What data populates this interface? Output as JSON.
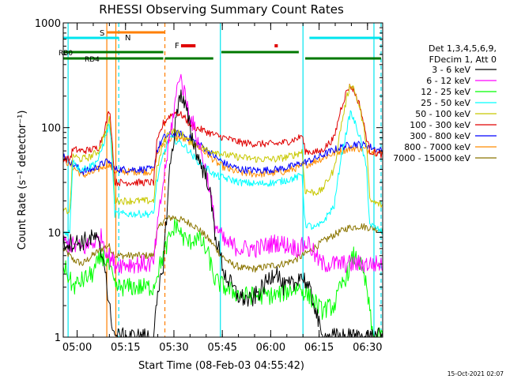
{
  "chart_data": {
    "type": "line",
    "title": "RHESSI Observing Summary Count Rates",
    "xlabel": "Start Time (08-Feb-03 04:55:42)",
    "ylabel": "Count Rate (s⁻¹ detector⁻¹)",
    "footer_date": "15-Oct-2021 02:07",
    "x_ticks": [
      "05:00",
      "05:15",
      "05:30",
      "05:45",
      "06:00",
      "06:15",
      "06:30"
    ],
    "x_tick_minutes": [
      4.3,
      19.3,
      34.3,
      49.3,
      64.3,
      79.3,
      94.3
    ],
    "xlim_minutes": [
      0,
      99
    ],
    "y_ticks": [
      "1",
      "10",
      "100",
      "1000"
    ],
    "y_tick_values": [
      1,
      10,
      100,
      1000
    ],
    "ylim": [
      1,
      1000
    ],
    "yscale": "log",
    "legend_header": [
      "Det 1,3,4,5,6,9,",
      "FDecim 1, Att 0"
    ],
    "series": [
      {
        "name": "3 - 6 keV",
        "color": "#000000",
        "points": [
          [
            0,
            8
          ],
          [
            5,
            8
          ],
          [
            10,
            9
          ],
          [
            13,
            5
          ],
          [
            14,
            2
          ],
          [
            15,
            1.5
          ],
          [
            16,
            1
          ],
          [
            28,
            1
          ],
          [
            29,
            2
          ],
          [
            31,
            5
          ],
          [
            33,
            40
          ],
          [
            35,
            120
          ],
          [
            36,
            220
          ],
          [
            38,
            150
          ],
          [
            40,
            80
          ],
          [
            42,
            50
          ],
          [
            45,
            30
          ],
          [
            47,
            10
          ],
          [
            50,
            4
          ],
          [
            54,
            2.5
          ],
          [
            58,
            2.2
          ],
          [
            62,
            3
          ],
          [
            66,
            4.5
          ],
          [
            68,
            3
          ],
          [
            72,
            3.2
          ],
          [
            73,
            4
          ],
          [
            75,
            3.5
          ],
          [
            78,
            2
          ],
          [
            80,
            1
          ],
          [
            84,
            1
          ],
          [
            86,
            1
          ],
          [
            99,
            1
          ]
        ]
      },
      {
        "name": "6 - 12 keV",
        "color": "#ff00ff",
        "points": [
          [
            0,
            8
          ],
          [
            6,
            7
          ],
          [
            12,
            9
          ],
          [
            14,
            6
          ],
          [
            16,
            5
          ],
          [
            28,
            5
          ],
          [
            29,
            10
          ],
          [
            31,
            30
          ],
          [
            33,
            80
          ],
          [
            35,
            200
          ],
          [
            36,
            330
          ],
          [
            37,
            250
          ],
          [
            39,
            140
          ],
          [
            41,
            90
          ],
          [
            43,
            55
          ],
          [
            45,
            30
          ],
          [
            47,
            12
          ],
          [
            50,
            8
          ],
          [
            55,
            7
          ],
          [
            60,
            7
          ],
          [
            66,
            8
          ],
          [
            70,
            7.5
          ],
          [
            73,
            7
          ],
          [
            76,
            8
          ],
          [
            78,
            6
          ],
          [
            80,
            5
          ],
          [
            99,
            5
          ]
        ]
      },
      {
        "name": "12 - 25 keV",
        "color": "#00ff00",
        "points": [
          [
            0,
            5
          ],
          [
            3,
            3
          ],
          [
            6,
            3.5
          ],
          [
            9,
            4
          ],
          [
            12,
            6
          ],
          [
            14,
            5
          ],
          [
            16,
            3
          ],
          [
            28,
            3
          ],
          [
            29,
            4
          ],
          [
            31,
            6
          ],
          [
            33,
            9
          ],
          [
            35,
            12
          ],
          [
            37,
            9
          ],
          [
            39,
            8
          ],
          [
            41,
            9
          ],
          [
            43,
            8
          ],
          [
            45,
            6
          ],
          [
            47,
            3.5
          ],
          [
            50,
            3
          ],
          [
            55,
            2.5
          ],
          [
            60,
            2.5
          ],
          [
            66,
            2.5
          ],
          [
            70,
            2.8
          ],
          [
            73,
            3
          ],
          [
            78,
            2.2
          ],
          [
            80,
            1.8
          ],
          [
            84,
            2
          ],
          [
            86,
            3
          ],
          [
            88,
            4
          ],
          [
            90,
            6
          ],
          [
            92,
            5
          ],
          [
            94,
            3
          ],
          [
            96,
            1
          ],
          [
            99,
            1
          ]
        ]
      },
      {
        "name": "25 - 50 keV",
        "color": "#00ffff",
        "points": [
          [
            0,
            10
          ],
          [
            2,
            10
          ],
          [
            3,
            50
          ],
          [
            5,
            40
          ],
          [
            8,
            42
          ],
          [
            11,
            50
          ],
          [
            13,
            80
          ],
          [
            14.3,
            110
          ],
          [
            15,
            60
          ],
          [
            16,
            15
          ],
          [
            28,
            15
          ],
          [
            29,
            30
          ],
          [
            31,
            55
          ],
          [
            33,
            80
          ],
          [
            35,
            75
          ],
          [
            37,
            70
          ],
          [
            39,
            60
          ],
          [
            41,
            50
          ],
          [
            43,
            45
          ],
          [
            45,
            40
          ],
          [
            47,
            35
          ],
          [
            50,
            33
          ],
          [
            55,
            30
          ],
          [
            60,
            29
          ],
          [
            66,
            30
          ],
          [
            70,
            32
          ],
          [
            73,
            34
          ],
          [
            74,
            36
          ],
          [
            75,
            12
          ],
          [
            78,
            11
          ],
          [
            80,
            12
          ],
          [
            84,
            18
          ],
          [
            86,
            50
          ],
          [
            88,
            100
          ],
          [
            89,
            140
          ],
          [
            90,
            120
          ],
          [
            92,
            80
          ],
          [
            94,
            40
          ],
          [
            95,
            12
          ],
          [
            99,
            10
          ]
        ]
      },
      {
        "name": "50 - 100 keV",
        "color": "#c8c800",
        "points": [
          [
            0,
            16
          ],
          [
            2,
            16
          ],
          [
            3,
            55
          ],
          [
            5,
            50
          ],
          [
            8,
            52
          ],
          [
            11,
            60
          ],
          [
            13,
            90
          ],
          [
            14.3,
            120
          ],
          [
            15,
            70
          ],
          [
            16,
            20
          ],
          [
            28,
            20
          ],
          [
            29,
            40
          ],
          [
            31,
            70
          ],
          [
            33,
            95
          ],
          [
            35,
            90
          ],
          [
            37,
            85
          ],
          [
            39,
            75
          ],
          [
            41,
            70
          ],
          [
            43,
            65
          ],
          [
            45,
            60
          ],
          [
            47,
            60
          ],
          [
            50,
            55
          ],
          [
            55,
            52
          ],
          [
            60,
            50
          ],
          [
            66,
            50
          ],
          [
            70,
            53
          ],
          [
            73,
            57
          ],
          [
            74,
            60
          ],
          [
            75,
            25
          ],
          [
            78,
            24
          ],
          [
            80,
            25
          ],
          [
            84,
            40
          ],
          [
            86,
            100
          ],
          [
            88,
            200
          ],
          [
            89,
            260
          ],
          [
            90,
            240
          ],
          [
            92,
            150
          ],
          [
            94,
            70
          ],
          [
            95,
            20
          ],
          [
            99,
            18
          ]
        ]
      },
      {
        "name": "100 - 300 keV",
        "color": "#e00000",
        "points": [
          [
            0,
            50
          ],
          [
            2,
            50
          ],
          [
            3,
            62
          ],
          [
            6,
            60
          ],
          [
            9,
            62
          ],
          [
            11,
            65
          ],
          [
            13,
            100
          ],
          [
            14.3,
            150
          ],
          [
            15,
            90
          ],
          [
            16,
            30
          ],
          [
            28,
            30
          ],
          [
            29,
            70
          ],
          [
            31,
            110
          ],
          [
            33,
            130
          ],
          [
            35,
            140
          ],
          [
            37,
            130
          ],
          [
            39,
            110
          ],
          [
            41,
            100
          ],
          [
            43,
            95
          ],
          [
            45,
            90
          ],
          [
            47,
            85
          ],
          [
            50,
            80
          ],
          [
            55,
            72
          ],
          [
            60,
            70
          ],
          [
            66,
            70
          ],
          [
            70,
            74
          ],
          [
            73,
            80
          ],
          [
            74,
            85
          ],
          [
            75,
            60
          ],
          [
            78,
            58
          ],
          [
            80,
            60
          ],
          [
            84,
            80
          ],
          [
            86,
            150
          ],
          [
            88,
            230
          ],
          [
            89,
            250
          ],
          [
            90,
            230
          ],
          [
            92,
            160
          ],
          [
            94,
            80
          ],
          [
            95,
            60
          ],
          [
            99,
            55
          ]
        ]
      },
      {
        "name": "300 - 800 keV",
        "color": "#0000ff",
        "points": [
          [
            0,
            55
          ],
          [
            3,
            45
          ],
          [
            6,
            38
          ],
          [
            9,
            40
          ],
          [
            12,
            45
          ],
          [
            14,
            48
          ],
          [
            16,
            40
          ],
          [
            28,
            40
          ],
          [
            29,
            60
          ],
          [
            31,
            80
          ],
          [
            33,
            85
          ],
          [
            36,
            88
          ],
          [
            39,
            80
          ],
          [
            42,
            70
          ],
          [
            45,
            60
          ],
          [
            48,
            50
          ],
          [
            51,
            44
          ],
          [
            55,
            40
          ],
          [
            60,
            39
          ],
          [
            66,
            40
          ],
          [
            70,
            42
          ],
          [
            73,
            45
          ],
          [
            76,
            48
          ],
          [
            79,
            52
          ],
          [
            82,
            58
          ],
          [
            86,
            65
          ],
          [
            90,
            70
          ],
          [
            94,
            68
          ],
          [
            97,
            62
          ],
          [
            99,
            60
          ]
        ]
      },
      {
        "name": "800 - 7000 keV",
        "color": "#ff8c00",
        "points": [
          [
            0,
            50
          ],
          [
            3,
            42
          ],
          [
            6,
            35
          ],
          [
            9,
            37
          ],
          [
            12,
            42
          ],
          [
            14,
            45
          ],
          [
            16,
            38
          ],
          [
            28,
            38
          ],
          [
            29,
            55
          ],
          [
            31,
            72
          ],
          [
            33,
            78
          ],
          [
            36,
            80
          ],
          [
            39,
            74
          ],
          [
            42,
            65
          ],
          [
            45,
            55
          ],
          [
            48,
            45
          ],
          [
            51,
            40
          ],
          [
            55,
            37
          ],
          [
            60,
            36
          ],
          [
            66,
            37
          ],
          [
            70,
            39
          ],
          [
            73,
            42
          ],
          [
            76,
            45
          ],
          [
            79,
            49
          ],
          [
            82,
            54
          ],
          [
            86,
            60
          ],
          [
            90,
            64
          ],
          [
            94,
            62
          ],
          [
            97,
            58
          ],
          [
            99,
            57
          ]
        ]
      },
      {
        "name": "7000 - 15000 keV",
        "color": "#8b7500",
        "points": [
          [
            0,
            7
          ],
          [
            3,
            5.5
          ],
          [
            6,
            5
          ],
          [
            9,
            6
          ],
          [
            12,
            7
          ],
          [
            14,
            7.5
          ],
          [
            16,
            6
          ],
          [
            28,
            6
          ],
          [
            29,
            10
          ],
          [
            31,
            13
          ],
          [
            34,
            14
          ],
          [
            37,
            13
          ],
          [
            40,
            12
          ],
          [
            43,
            10
          ],
          [
            46,
            8
          ],
          [
            49,
            6
          ],
          [
            52,
            5
          ],
          [
            56,
            4.5
          ],
          [
            60,
            4.5
          ],
          [
            64,
            4.8
          ],
          [
            68,
            5
          ],
          [
            72,
            5.5
          ],
          [
            76,
            6.5
          ],
          [
            80,
            8
          ],
          [
            84,
            9.5
          ],
          [
            88,
            11
          ],
          [
            92,
            11.5
          ],
          [
            96,
            11
          ],
          [
            99,
            10.5
          ]
        ]
      }
    ],
    "annotations": {
      "labels": [
        "S",
        "N",
        "F",
        "RB0",
        "RD4"
      ],
      "s_bar_minutes": [
        13.5,
        31.5
      ],
      "n_bars_minutes": [
        [
          0,
          17.2
        ],
        [
          76.3,
          98.5
        ]
      ],
      "f_bars_minutes": [
        [
          36.5,
          41
        ],
        [
          65.5,
          66.5
        ]
      ],
      "rb0_bars_minutes": [
        [
          0,
          31
        ],
        [
          49,
          73
        ]
      ],
      "rd4_bars_minutes": [
        [
          0,
          31
        ],
        [
          31.5,
          46.5
        ],
        [
          75,
          98.5
        ]
      ],
      "cyan_lines_minutes": [
        1.5,
        48.7,
        74.3,
        96.3
      ],
      "cyan_dashed_lines_minutes": [
        17.2,
        98.5
      ],
      "orange_lines_minutes": [
        13.5,
        16.3
      ],
      "orange_dashed_lines_minutes": [
        31.5
      ]
    }
  }
}
